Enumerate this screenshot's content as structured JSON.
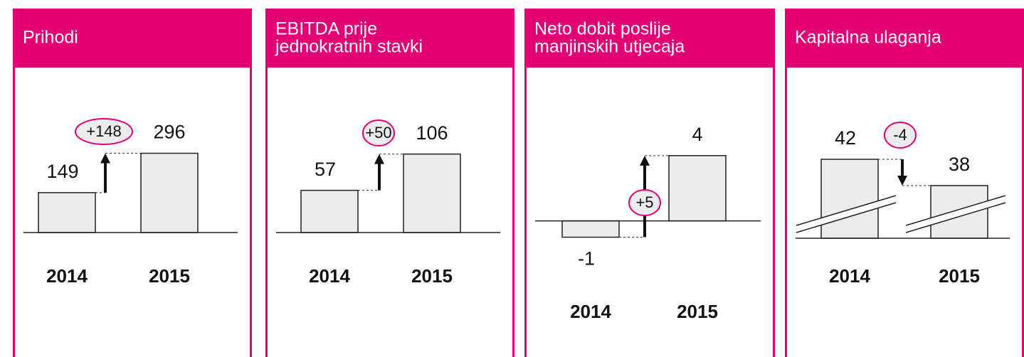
{
  "chart_data": [
    {
      "type": "bar",
      "title": "Prihodi",
      "categories": [
        "2014",
        "2015"
      ],
      "values": [
        149,
        296
      ],
      "change": {
        "value": 148,
        "label": "+148"
      },
      "ylim": [
        0,
        470
      ],
      "color": "#ececec"
    },
    {
      "type": "bar",
      "title": "EBITDA prije\njednokratnih stavki",
      "categories": [
        "2014",
        "2015"
      ],
      "values": [
        57,
        106
      ],
      "change": {
        "value": 50,
        "label": "+50"
      },
      "ylim": [
        0,
        170
      ],
      "color": "#ececec"
    },
    {
      "type": "bar",
      "title": "Neto dobit poslije\nmanjinskih utjecaja",
      "categories": [
        "2014",
        "2015"
      ],
      "values": [
        -1,
        4
      ],
      "change": {
        "value": 5,
        "label": "+5"
      },
      "ylim": [
        -1.5,
        7
      ],
      "color": "#ececec"
    },
    {
      "type": "bar",
      "title": "Kapitalna ulaganja",
      "categories": [
        "2014",
        "2015"
      ],
      "values": [
        42,
        38
      ],
      "change": -4,
      "ylim": [
        30,
        50
      ],
      "color": "#ececec"
    }
  ]
}
